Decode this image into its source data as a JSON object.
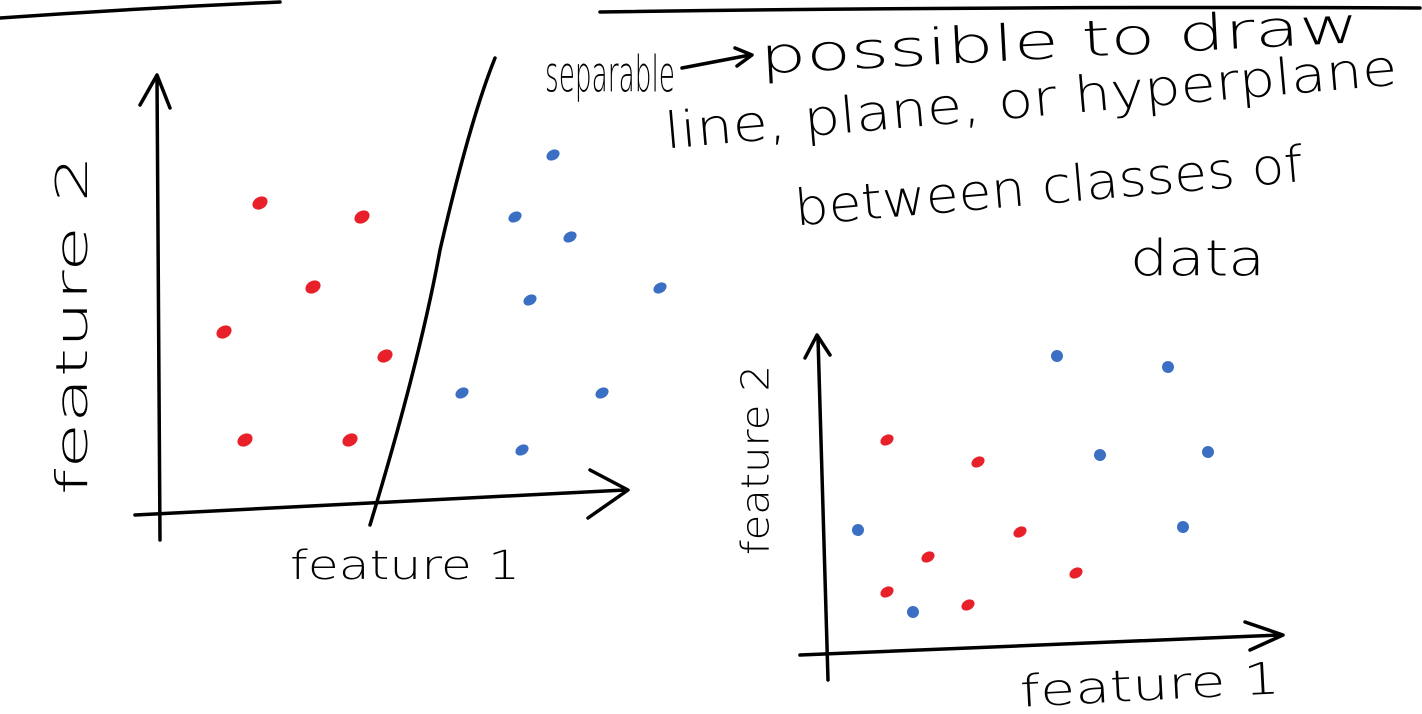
{
  "note": {
    "term": "separable",
    "lines": [
      "possible to draw",
      "line, plane, or hyperplane",
      "between classes of",
      "data"
    ]
  },
  "plots": [
    {
      "x_label": "feature 1",
      "y_label": "feature 2"
    },
    {
      "x_label": "feature 1",
      "y_label": "feature 2"
    }
  ]
}
